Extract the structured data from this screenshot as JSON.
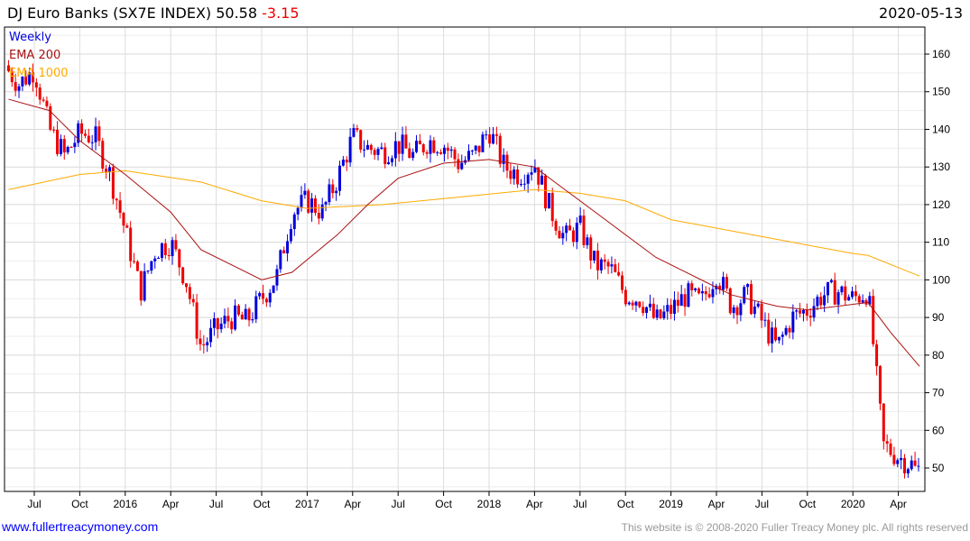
{
  "header": {
    "title": "DJ Euro Banks (SX7E INDEX) 50.58",
    "change": "-3.15",
    "date": "2020-05-13"
  },
  "footer": {
    "site": "www.fullertreacymoney.com",
    "copyright": "This website is © 2008-2020 Fuller Treacy Money plc. All rights reserved"
  },
  "chart_data": {
    "type": "candlestick",
    "title": "DJ Euro Banks (SX7E INDEX)",
    "legend": [
      "Weekly",
      "EMA 200",
      "EMA 1000"
    ],
    "colors": {
      "up": "#0000dd",
      "down": "#ee0000",
      "ema200": "#aa1111",
      "ema1000": "#ffaa00"
    },
    "ylim": [
      44,
      168
    ],
    "yticks": [
      50,
      60,
      70,
      80,
      90,
      100,
      110,
      120,
      130,
      140,
      150,
      160
    ],
    "xticks": [
      {
        "m": 2,
        "label": "Jul"
      },
      {
        "m": 5,
        "label": "Oct"
      },
      {
        "m": 8,
        "label": "2016"
      },
      {
        "m": 11,
        "label": "Apr"
      },
      {
        "m": 14,
        "label": "Jul"
      },
      {
        "m": 17,
        "label": "Oct"
      },
      {
        "m": 20,
        "label": "2017"
      },
      {
        "m": 23,
        "label": "Apr"
      },
      {
        "m": 26,
        "label": "Jul"
      },
      {
        "m": 29,
        "label": "Oct"
      },
      {
        "m": 32,
        "label": "2018"
      },
      {
        "m": 35,
        "label": "Apr"
      },
      {
        "m": 38,
        "label": "Jul"
      },
      {
        "m": 41,
        "label": "Oct"
      },
      {
        "m": 44,
        "label": "2019"
      },
      {
        "m": 47,
        "label": "Apr"
      },
      {
        "m": 50,
        "label": "Jul"
      },
      {
        "m": 53,
        "label": "Oct"
      },
      {
        "m": 56,
        "label": "2020"
      },
      {
        "m": 59,
        "label": "Apr"
      }
    ],
    "monthly_close": [
      157,
      152,
      156,
      140,
      133,
      139,
      138,
      128,
      113,
      97,
      108,
      110,
      100,
      82,
      87,
      90,
      89,
      95,
      101,
      118,
      121,
      118,
      127,
      138,
      135,
      134,
      136,
      133,
      137,
      136,
      131,
      133,
      140,
      130,
      128,
      131,
      119,
      111,
      114,
      104,
      103,
      96,
      95,
      89,
      92,
      96,
      94,
      102,
      93,
      96,
      89,
      82,
      90,
      92,
      96,
      97,
      95,
      97,
      56,
      53,
      50.58
    ],
    "ema200": [
      [
        0.3,
        148
      ],
      [
        3,
        145
      ],
      [
        5,
        137
      ],
      [
        8,
        128
      ],
      [
        11,
        118
      ],
      [
        13,
        108
      ],
      [
        17,
        100
      ],
      [
        19,
        102
      ],
      [
        22,
        112
      ],
      [
        24,
        120
      ],
      [
        26,
        127
      ],
      [
        29,
        131
      ],
      [
        32,
        132
      ],
      [
        35,
        130
      ],
      [
        37,
        124
      ],
      [
        40,
        115
      ],
      [
        43,
        106
      ],
      [
        46,
        100
      ],
      [
        48,
        96
      ],
      [
        51,
        93
      ],
      [
        53,
        92
      ],
      [
        55,
        93
      ],
      [
        57,
        94
      ],
      [
        58.5,
        86
      ],
      [
        60.4,
        77
      ]
    ],
    "ema1000": [
      [
        0.3,
        124
      ],
      [
        5,
        128
      ],
      [
        8,
        129
      ],
      [
        13,
        126
      ],
      [
        17,
        121
      ],
      [
        20,
        119
      ],
      [
        25,
        120
      ],
      [
        30,
        122
      ],
      [
        35,
        124
      ],
      [
        38,
        123
      ],
      [
        41,
        121
      ],
      [
        44,
        116
      ],
      [
        48,
        113
      ],
      [
        52,
        110
      ],
      [
        56,
        107
      ],
      [
        57,
        106.5
      ],
      [
        60.4,
        101
      ]
    ]
  }
}
